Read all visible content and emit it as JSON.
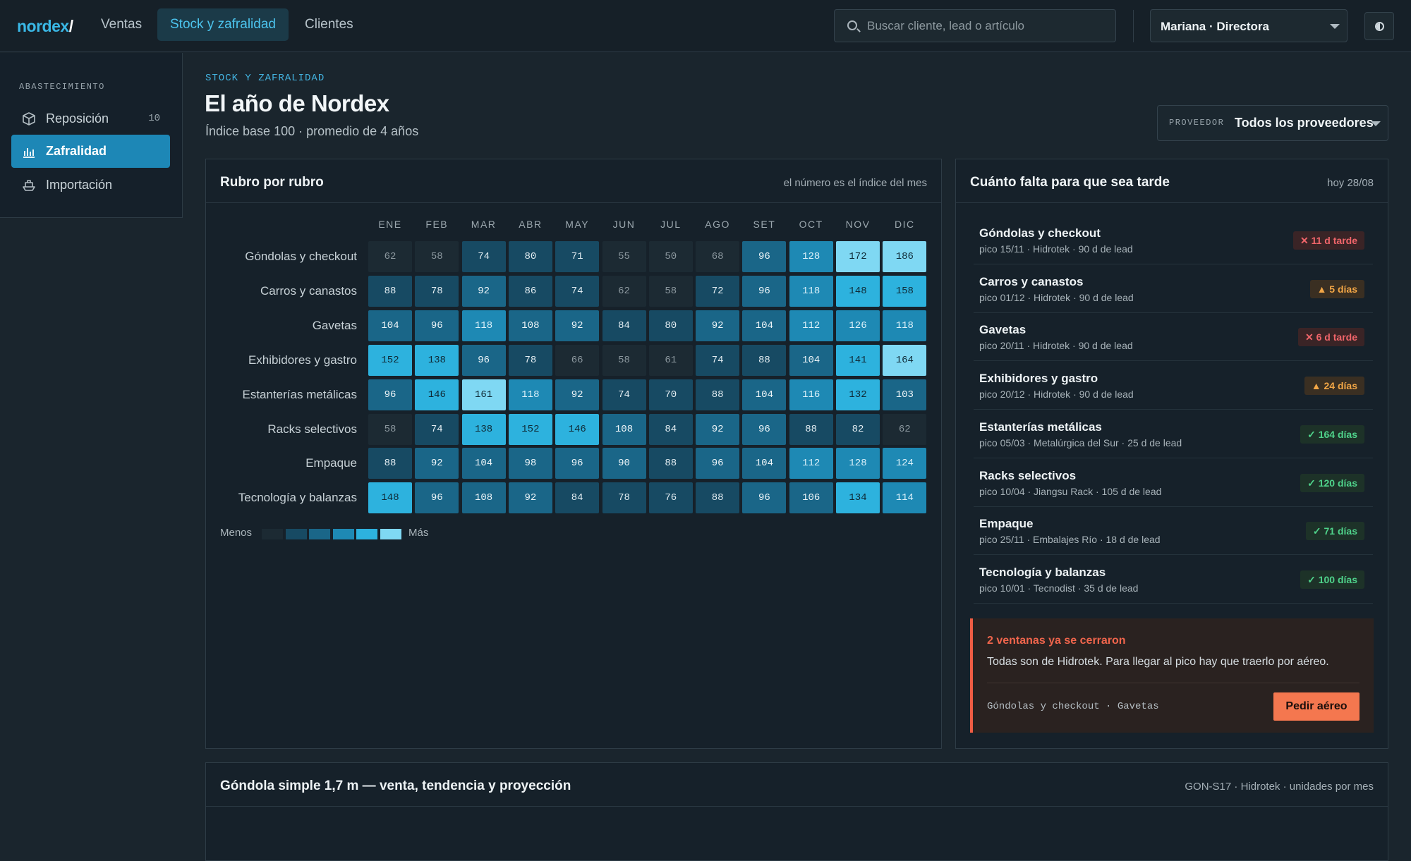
{
  "topbar": {
    "logo": "nordex",
    "logo_slash": "/",
    "nav": [
      "Ventas",
      "Stock y zafralidad",
      "Clientes"
    ],
    "active_nav": "Stock y zafralidad",
    "search_placeholder": "Buscar cliente, lead o artículo",
    "user": "Mariana · Directora",
    "theme_icon": "contrast-icon"
  },
  "sidebar": {
    "heading": "ABASTECIMIENTO",
    "items": [
      {
        "label": "Reposición",
        "count": "10",
        "icon": "box-icon"
      },
      {
        "label": "Zafralidad",
        "count": "",
        "icon": "bar-chart-icon",
        "active": true
      },
      {
        "label": "Importación",
        "count": "",
        "icon": "ship-icon"
      }
    ]
  },
  "header": {
    "breadcrumb": "STOCK Y ZAFRALIDAD",
    "title": "El año de Nordex",
    "subtitle": "Índice base 100 · promedio de 4 años",
    "provider_label": "PROVEEDOR",
    "provider_value": "Todos los proveedores"
  },
  "heatmap": {
    "title": "Rubro por rubro",
    "note": "el número es el índice del mes",
    "legend_min": "Menos",
    "legend_max": "Más",
    "colors": {
      "level0": "#1c2a33",
      "level1": "#174a63",
      "level2": "#1a6688",
      "level3": "#1e89b4",
      "level4": "#2db2de",
      "level5": "#7fd8f3"
    }
  },
  "chart_data": {
    "type": "heatmap",
    "title": "Rubro por rubro",
    "months": [
      "ENE",
      "FEB",
      "MAR",
      "ABR",
      "MAY",
      "JUN",
      "JUL",
      "AGO",
      "SET",
      "OCT",
      "NOV",
      "DIC"
    ],
    "rows": [
      {
        "name": "Góndolas y checkout",
        "values": [
          62,
          58,
          74,
          80,
          71,
          55,
          50,
          68,
          96,
          128,
          172,
          186
        ]
      },
      {
        "name": "Carros y canastos",
        "values": [
          88,
          78,
          92,
          86,
          74,
          62,
          58,
          72,
          96,
          118,
          148,
          158
        ]
      },
      {
        "name": "Gavetas",
        "values": [
          104,
          96,
          118,
          108,
          92,
          84,
          80,
          92,
          104,
          112,
          126,
          118
        ]
      },
      {
        "name": "Exhibidores y gastro",
        "values": [
          152,
          138,
          96,
          78,
          66,
          58,
          61,
          74,
          88,
          104,
          141,
          164
        ]
      },
      {
        "name": "Estanterías metálicas",
        "values": [
          96,
          146,
          161,
          118,
          92,
          74,
          70,
          88,
          104,
          116,
          132,
          103
        ]
      },
      {
        "name": "Racks selectivos",
        "values": [
          58,
          74,
          138,
          152,
          146,
          108,
          84,
          92,
          96,
          88,
          82,
          62
        ]
      },
      {
        "name": "Empaque",
        "values": [
          88,
          92,
          104,
          98,
          96,
          90,
          88,
          96,
          104,
          112,
          128,
          124
        ]
      },
      {
        "name": "Tecnología y balanzas",
        "values": [
          148,
          96,
          108,
          92,
          84,
          78,
          76,
          88,
          96,
          106,
          134,
          114
        ]
      }
    ]
  },
  "risk": {
    "title": "Cuánto falta para que sea tarde",
    "date": "hoy 28/08",
    "items": [
      {
        "name": "Góndolas y checkout",
        "sub": "pico 15/11 · Hidrotek · 90 d de lead",
        "badge": "✕ 11 d tarde",
        "status": "late"
      },
      {
        "name": "Carros y canastos",
        "sub": "pico 01/12 · Hidrotek · 90 d de lead",
        "badge": "▲ 5 días",
        "status": "warn"
      },
      {
        "name": "Gavetas",
        "sub": "pico 20/11 · Hidrotek · 90 d de lead",
        "badge": "✕ 6 d tarde",
        "status": "late"
      },
      {
        "name": "Exhibidores y gastro",
        "sub": "pico 20/12 · Hidrotek · 90 d de lead",
        "badge": "▲ 24 días",
        "status": "warn"
      },
      {
        "name": "Estanterías metálicas",
        "sub": "pico 05/03 · Metalúrgica del Sur · 25 d de lead",
        "badge": "✓ 164 días",
        "status": "ok"
      },
      {
        "name": "Racks selectivos",
        "sub": "pico 10/04 · Jiangsu Rack · 105 d de lead",
        "badge": "✓ 120 días",
        "status": "ok"
      },
      {
        "name": "Empaque",
        "sub": "pico 25/11 · Embalajes Río · 18 d de lead",
        "badge": "✓ 71 días",
        "status": "ok"
      },
      {
        "name": "Tecnología y balanzas",
        "sub": "pico 10/01 · Tecnodist · 35 d de lead",
        "badge": "✓ 100 días",
        "status": "ok"
      }
    ],
    "alert": {
      "title": "2 ventanas ya se cerraron",
      "text": "Todas son de Hidrotek. Para llegar al pico hay que traerlo por aéreo.",
      "items": "Góndolas y checkout · Gavetas",
      "button": "Pedir aéreo"
    }
  },
  "bottom": {
    "title": "Góndola simple 1,7 m — venta, tendencia y proyección",
    "note": "GON-S17 · Hidrotek · unidades por mes"
  }
}
